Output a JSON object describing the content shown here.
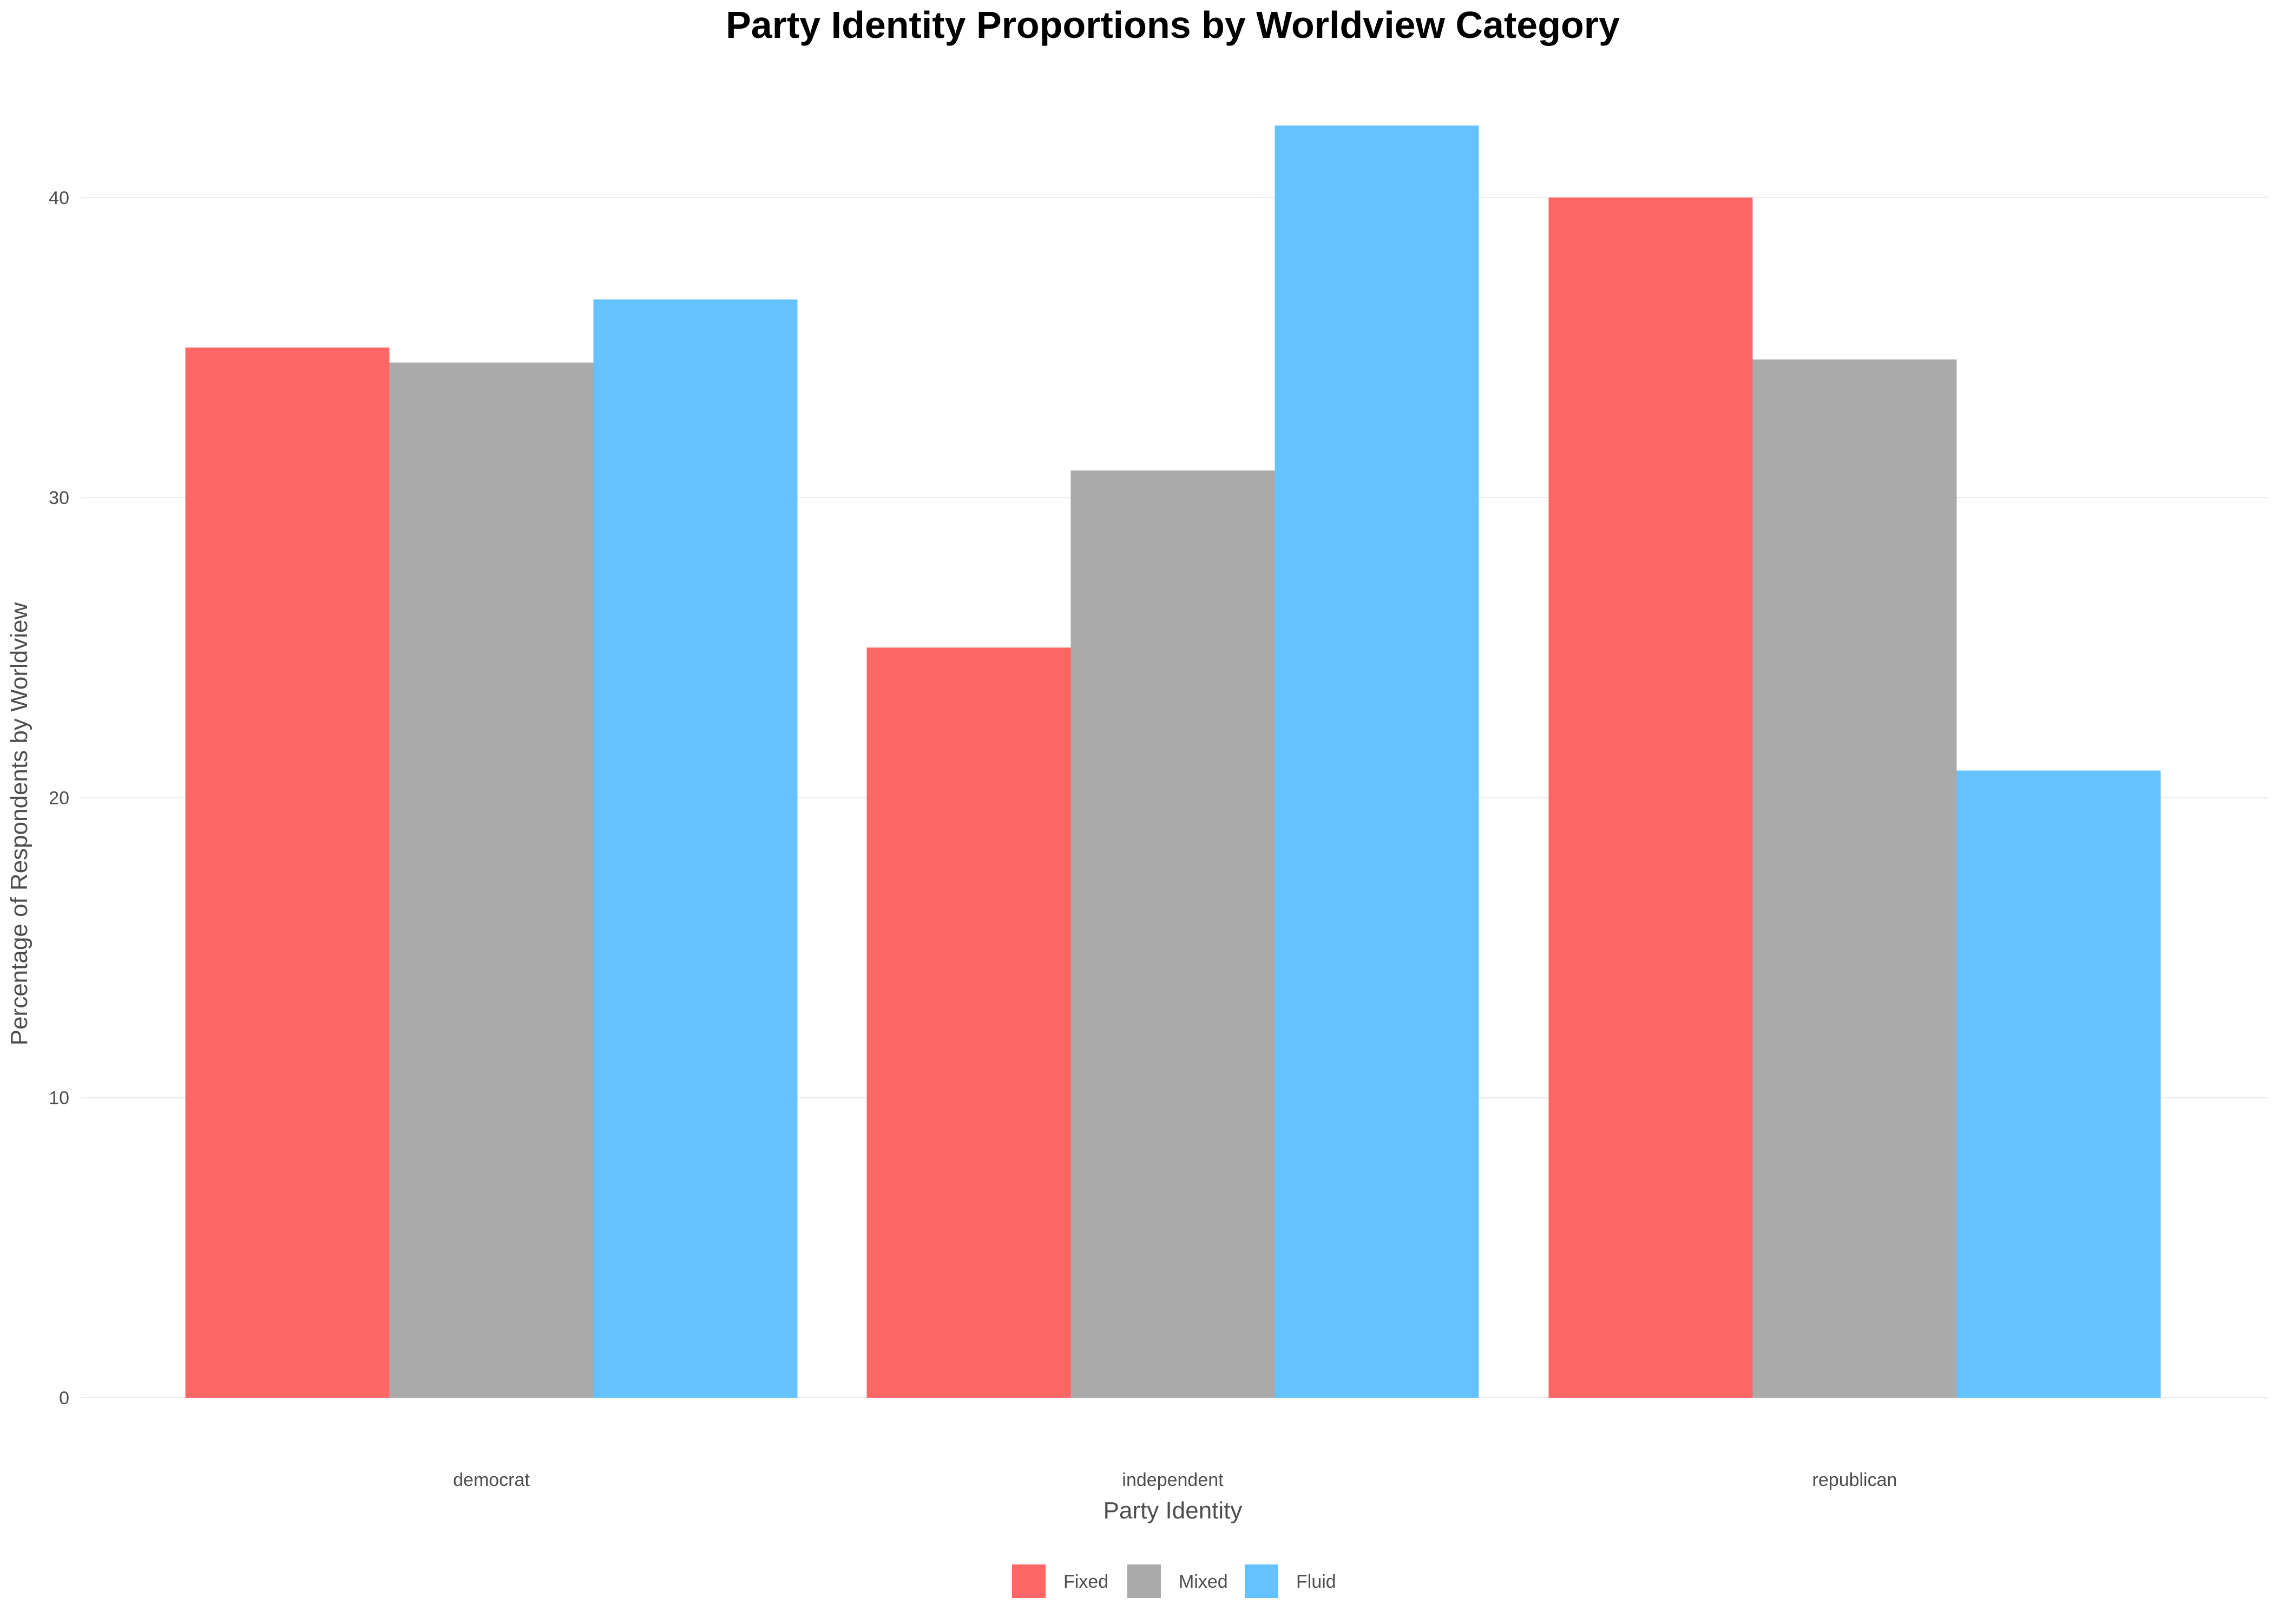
{
  "chart_data": {
    "type": "bar",
    "title": "Party Identity Proportions by Worldview Category",
    "xlabel": "Party Identity",
    "ylabel": "Percentage of Respondents by Worldview",
    "categories": [
      "democrat",
      "independent",
      "republican"
    ],
    "series": [
      {
        "name": "Fixed",
        "color": "#FF6666",
        "values": [
          35.0,
          25.0,
          40.0
        ]
      },
      {
        "name": "Mixed",
        "color": "#AAAAAA",
        "values": [
          34.5,
          30.9,
          34.6
        ]
      },
      {
        "name": "Fluid",
        "color": "#66C2FF",
        "values": [
          36.6,
          42.4,
          20.9
        ]
      }
    ],
    "ylim": [
      0,
      42.4
    ],
    "yticks": [
      0,
      10,
      20,
      30,
      40
    ],
    "grid": true,
    "legend_position": "bottom"
  }
}
